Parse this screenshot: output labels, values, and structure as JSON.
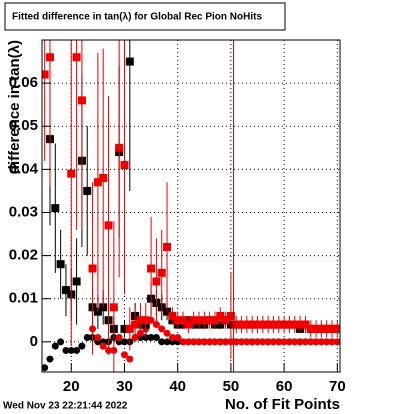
{
  "chart_data": {
    "type": "scatter",
    "title": "Fitted difference in tan(λ) for Global Rec Pion NoHits",
    "xlabel": "No. of Fit Points",
    "ylabel": "difference in tan(λ)",
    "timestamp": "Wed Nov 23 22:21:44 2022",
    "xlim": [
      14.5,
      70.5
    ],
    "ylim": [
      -0.007,
      0.07
    ],
    "xticks": [
      20,
      30,
      40,
      50,
      60,
      70
    ],
    "yticks": [
      0,
      0.01,
      0.02,
      0.03,
      0.04,
      0.05,
      0.06
    ],
    "grid": true,
    "vline": 50.5,
    "vline_color": "#cc0000",
    "x": [
      15,
      16,
      17,
      18,
      19,
      20,
      21,
      22,
      23,
      24,
      25,
      26,
      27,
      28,
      29,
      30,
      31,
      32,
      33,
      34,
      35,
      36,
      37,
      38,
      39,
      40,
      41,
      42,
      43,
      44,
      45,
      46,
      47,
      48,
      49,
      50,
      51,
      52,
      53,
      54,
      55,
      56,
      57,
      58,
      59,
      60,
      61,
      62,
      63,
      64,
      65,
      66,
      67,
      68,
      69,
      70
    ],
    "series": [
      {
        "color": "#000000",
        "marker": "circle",
        "values": [
          -0.006,
          -0.004,
          -0.001,
          0,
          -0.002,
          -0.002,
          -0.002,
          -0.001,
          0.001,
          0.001,
          0,
          0,
          0,
          0.001,
          0,
          0,
          0,
          0.001,
          0.001,
          0.001,
          0.001,
          0.001,
          0,
          0,
          0,
          0,
          0,
          0,
          0,
          0,
          0,
          0,
          0,
          0,
          0,
          0,
          0,
          0,
          0,
          0,
          0,
          0,
          0,
          0,
          0,
          0,
          0,
          0,
          0,
          0,
          0,
          0,
          0,
          0,
          0,
          0
        ]
      },
      {
        "color": "#ee0000",
        "marker": "circle",
        "values": [
          null,
          null,
          null,
          null,
          null,
          null,
          null,
          null,
          null,
          0.003,
          0.001,
          -0.001,
          -0.002,
          -0.002,
          0.001,
          -0.003,
          -0.004,
          0.001,
          0.002,
          0.003,
          0.005,
          0.004,
          0.003,
          0.002,
          0.001,
          0.001,
          0,
          0,
          0,
          0,
          0,
          0,
          0,
          0,
          0,
          0,
          0,
          0,
          0,
          0,
          0,
          0,
          0,
          0,
          0,
          0,
          0,
          0,
          0,
          0,
          0,
          0,
          0,
          0,
          0,
          0
        ]
      },
      {
        "color": "#000000",
        "marker": "square",
        "values": [
          null,
          0.047,
          0.031,
          0.018,
          0.012,
          0.011,
          0.014,
          0.042,
          0.035,
          0.008,
          0.007,
          0.008,
          0.005,
          0.003,
          0.044,
          0.003,
          0.065,
          0.006,
          0.004,
          0.004,
          0.01,
          0.009,
          0.008,
          0.007,
          0.005,
          0.004,
          0.004,
          0.005,
          0.004,
          0.004,
          0.004,
          0.005,
          0.004,
          0.004,
          0.005,
          0.004,
          0.004,
          0.004,
          0.004,
          0.004,
          0.004,
          0.004,
          0.004,
          0.004,
          0.004,
          0.004,
          0.004,
          0.004,
          0.003,
          0.004,
          0.003,
          0.003,
          0.003,
          0.003,
          0.003,
          0.003
        ],
        "errors": [
          null,
          0.02,
          0.015,
          0.008,
          0.006,
          0.006,
          0.01,
          0.02,
          0.015,
          0.005,
          0.004,
          0.004,
          0.003,
          0.003,
          0.02,
          0.002,
          0.03,
          0.003,
          0.002,
          0.002,
          0.004,
          0.003,
          0.003,
          0.002,
          0.001,
          0.001,
          0.001,
          0.001,
          0.001,
          0.001,
          0.001,
          0.001,
          0.001,
          0.001,
          0.001,
          0.001,
          0.001,
          0.001,
          0.001,
          0.001,
          0.001,
          0.001,
          0.001,
          0.001,
          0.001,
          0.001,
          0.001,
          0.001,
          0.001,
          0.001,
          0.001,
          0.001,
          0.001,
          0.001,
          0.001,
          0.001
        ]
      },
      {
        "color": "#ee0000",
        "marker": "square",
        "values": [
          0.062,
          0.066,
          null,
          null,
          null,
          0.039,
          0.066,
          0.056,
          null,
          0.017,
          0.037,
          0.038,
          0.027,
          0.008,
          0.045,
          0.041,
          0.003,
          0.004,
          0.005,
          0.005,
          0.017,
          0.014,
          0.016,
          0.022,
          0.006,
          0.005,
          0.005,
          0.004,
          0.005,
          0.005,
          0.005,
          0.005,
          0.005,
          0.006,
          0.005,
          0.006,
          0.004,
          0.004,
          0.004,
          0.004,
          0.004,
          0.004,
          0.004,
          0.004,
          0.004,
          0.004,
          0.004,
          0.004,
          0.004,
          0.004,
          0.003,
          0.003,
          0.003,
          0.003,
          0.003,
          0.003
        ],
        "errors": [
          0.02,
          0.03,
          null,
          null,
          null,
          0.04,
          0.04,
          0.03,
          null,
          0.02,
          0.03,
          0.03,
          0.03,
          0.02,
          0.03,
          0.03,
          0.005,
          0.004,
          0.004,
          0.004,
          0.012,
          0.01,
          0.01,
          0.015,
          0.002,
          0.002,
          0.002,
          0.002,
          0.002,
          0.002,
          0.002,
          0.002,
          0.002,
          0.002,
          0.002,
          0.01,
          0.002,
          0.002,
          0.002,
          0.002,
          0.002,
          0.002,
          0.002,
          0.002,
          0.002,
          0.002,
          0.002,
          0.002,
          0.002,
          0.002,
          0.002,
          0.002,
          0.002,
          0.002,
          0.002,
          0.002
        ]
      }
    ]
  }
}
